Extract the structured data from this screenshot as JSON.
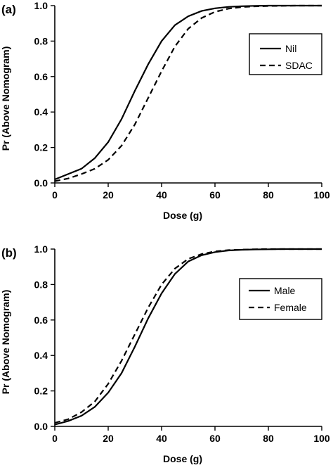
{
  "chart_data": [
    {
      "type": "line",
      "panel_label": "(a)",
      "xlabel": "Dose (g)",
      "ylabel": "Pr (Above Nomogram)",
      "xlim": [
        0,
        100
      ],
      "ylim": [
        0,
        1
      ],
      "xticks": [
        "0",
        "20",
        "40",
        "60",
        "80",
        "100"
      ],
      "yticks": [
        "0.0",
        "0.2",
        "0.4",
        "0.6",
        "0.8",
        "1.0"
      ],
      "grid": false,
      "legend_position": "top-right",
      "x": [
        0,
        5,
        10,
        15,
        20,
        25,
        30,
        35,
        40,
        45,
        50,
        55,
        60,
        65,
        70,
        75,
        80,
        85,
        90,
        95,
        100
      ],
      "series": [
        {
          "name": "Nil",
          "style": "solid",
          "values": [
            0.02,
            0.05,
            0.08,
            0.14,
            0.23,
            0.36,
            0.52,
            0.67,
            0.8,
            0.89,
            0.94,
            0.97,
            0.985,
            0.993,
            0.997,
            0.999,
            1.0,
            1.0,
            1.0,
            1.0,
            1.0
          ]
        },
        {
          "name": "SDAC",
          "style": "dashed",
          "values": [
            0.01,
            0.025,
            0.05,
            0.08,
            0.13,
            0.21,
            0.33,
            0.48,
            0.63,
            0.77,
            0.87,
            0.93,
            0.965,
            0.983,
            0.992,
            0.996,
            0.998,
            0.999,
            1.0,
            1.0,
            1.0
          ]
        }
      ]
    },
    {
      "type": "line",
      "panel_label": "(b)",
      "xlabel": "Dose (g)",
      "ylabel": "Pr (Above Nomogram)",
      "xlim": [
        0,
        100
      ],
      "ylim": [
        0,
        1
      ],
      "xticks": [
        "0",
        "20",
        "40",
        "60",
        "80",
        "100"
      ],
      "yticks": [
        "0.0",
        "0.2",
        "0.4",
        "0.6",
        "0.8",
        "1.0"
      ],
      "grid": false,
      "legend_position": "center-right",
      "x": [
        0,
        5,
        10,
        15,
        20,
        25,
        30,
        35,
        40,
        45,
        50,
        55,
        60,
        65,
        70,
        75,
        80,
        85,
        90,
        95,
        100
      ],
      "series": [
        {
          "name": "Male",
          "style": "solid",
          "values": [
            0.01,
            0.03,
            0.06,
            0.11,
            0.19,
            0.3,
            0.45,
            0.61,
            0.75,
            0.86,
            0.93,
            0.965,
            0.983,
            0.992,
            0.996,
            0.998,
            0.999,
            1.0,
            1.0,
            1.0,
            1.0
          ]
        },
        {
          "name": "Female",
          "style": "dashed",
          "values": [
            0.02,
            0.04,
            0.08,
            0.14,
            0.24,
            0.37,
            0.52,
            0.67,
            0.8,
            0.89,
            0.945,
            0.972,
            0.987,
            0.994,
            0.997,
            0.999,
            1.0,
            1.0,
            1.0,
            1.0,
            1.0
          ]
        }
      ]
    }
  ]
}
